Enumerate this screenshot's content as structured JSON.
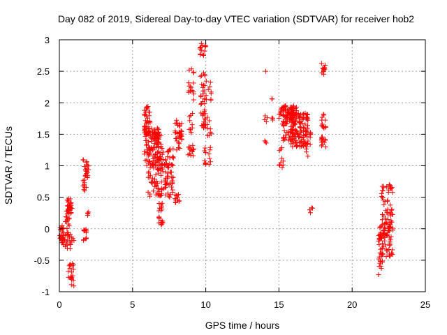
{
  "chart_data": {
    "type": "scatter",
    "title": "Day 082 of 2019, Sidereal Day-to-day VTEC variation (SDTVAR) for receiver hob2",
    "xlabel": "GPS time / hours",
    "ylabel": "SDTVAR / TECUs",
    "xlim": [
      0,
      25
    ],
    "ylim": [
      -1,
      3
    ],
    "xticks": [
      "0",
      "5",
      "10",
      "15",
      "20",
      "25"
    ],
    "yticks": [
      "-1",
      "-0.5",
      "0",
      "0.5",
      "1",
      "1.5",
      "2",
      "2.5",
      "3"
    ],
    "grid": true,
    "marker": "+",
    "color": "#ff0000",
    "series": [
      {
        "name": "SDTVAR",
        "clusters": [
          {
            "x0": 0.0,
            "x1": 0.3,
            "y0": -0.25,
            "y1": 0.05,
            "n": 25
          },
          {
            "x0": 0.2,
            "x1": 1.0,
            "y0": -0.32,
            "y1": -0.05,
            "n": 30
          },
          {
            "x0": 0.4,
            "x1": 0.8,
            "y0": 0.0,
            "y1": 0.35,
            "n": 20
          },
          {
            "x0": 0.5,
            "x1": 0.9,
            "y0": 0.25,
            "y1": 0.48,
            "n": 25
          },
          {
            "x0": 0.6,
            "x1": 1.0,
            "y0": -0.92,
            "y1": -0.55,
            "n": 20
          },
          {
            "x0": 1.6,
            "x1": 1.9,
            "y0": -0.2,
            "y1": 0.0,
            "n": 12
          },
          {
            "x0": 1.6,
            "x1": 2.0,
            "y0": 0.6,
            "y1": 1.1,
            "n": 30
          },
          {
            "x0": 1.8,
            "x1": 2.0,
            "y0": 0.2,
            "y1": 0.3,
            "n": 4
          },
          {
            "x0": 5.8,
            "x1": 6.2,
            "y0": 1.5,
            "y1": 1.95,
            "n": 40
          },
          {
            "x0": 5.8,
            "x1": 6.8,
            "y0": 1.0,
            "y1": 1.6,
            "n": 100
          },
          {
            "x0": 6.0,
            "x1": 6.8,
            "y0": 0.5,
            "y1": 1.1,
            "n": 40
          },
          {
            "x0": 6.5,
            "x1": 7.0,
            "y0": 1.3,
            "y1": 1.55,
            "n": 25
          },
          {
            "x0": 6.8,
            "x1": 7.1,
            "y0": 0.05,
            "y1": 0.45,
            "n": 20
          },
          {
            "x0": 6.8,
            "x1": 7.8,
            "y0": 0.5,
            "y1": 1.3,
            "n": 90
          },
          {
            "x0": 7.5,
            "x1": 7.7,
            "y0": 0.9,
            "y1": 0.9,
            "n": 2
          },
          {
            "x0": 7.9,
            "x1": 8.4,
            "y0": 1.25,
            "y1": 1.75,
            "n": 35
          },
          {
            "x0": 7.9,
            "x1": 8.3,
            "y0": 0.4,
            "y1": 0.55,
            "n": 12
          },
          {
            "x0": 8.8,
            "x1": 9.1,
            "y0": 1.5,
            "y1": 1.85,
            "n": 10
          },
          {
            "x0": 8.7,
            "x1": 9.2,
            "y0": 1.15,
            "y1": 1.35,
            "n": 14
          },
          {
            "x0": 8.8,
            "x1": 9.2,
            "y0": 2.0,
            "y1": 2.6,
            "n": 16
          },
          {
            "x0": 9.6,
            "x1": 10.0,
            "y0": 2.75,
            "y1": 2.95,
            "n": 14
          },
          {
            "x0": 9.6,
            "x1": 10.0,
            "y0": 1.6,
            "y1": 2.5,
            "n": 30
          },
          {
            "x0": 9.9,
            "x1": 10.4,
            "y0": 1.0,
            "y1": 2.35,
            "n": 40
          },
          {
            "x0": 14.0,
            "x1": 14.1,
            "y0": 2.5,
            "y1": 2.5,
            "n": 1
          },
          {
            "x0": 14.0,
            "x1": 14.2,
            "y0": 1.65,
            "y1": 1.8,
            "n": 4
          },
          {
            "x0": 14.0,
            "x1": 14.2,
            "y0": 1.35,
            "y1": 1.45,
            "n": 3
          },
          {
            "x0": 14.4,
            "x1": 14.6,
            "y0": 2.05,
            "y1": 2.08,
            "n": 2
          },
          {
            "x0": 14.5,
            "x1": 14.7,
            "y0": 1.72,
            "y1": 1.78,
            "n": 3
          },
          {
            "x0": 15.0,
            "x1": 15.3,
            "y0": 0.95,
            "y1": 1.3,
            "n": 10
          },
          {
            "x0": 15.0,
            "x1": 16.2,
            "y0": 1.75,
            "y1": 1.97,
            "n": 80
          },
          {
            "x0": 15.2,
            "x1": 16.0,
            "y0": 1.4,
            "y1": 1.75,
            "n": 40
          },
          {
            "x0": 15.8,
            "x1": 17.0,
            "y0": 1.3,
            "y1": 1.85,
            "n": 120
          },
          {
            "x0": 16.8,
            "x1": 17.2,
            "y0": 1.1,
            "y1": 1.6,
            "n": 16
          },
          {
            "x0": 17.0,
            "x1": 17.3,
            "y0": 0.25,
            "y1": 0.35,
            "n": 4
          },
          {
            "x0": 17.9,
            "x1": 18.2,
            "y0": 2.45,
            "y1": 2.65,
            "n": 12
          },
          {
            "x0": 17.9,
            "x1": 18.2,
            "y0": 1.55,
            "y1": 1.82,
            "n": 12
          },
          {
            "x0": 17.9,
            "x1": 18.2,
            "y0": 1.28,
            "y1": 1.48,
            "n": 14
          },
          {
            "x0": 21.8,
            "x1": 22.1,
            "y0": -0.78,
            "y1": -0.4,
            "n": 12
          },
          {
            "x0": 21.8,
            "x1": 22.8,
            "y0": -0.45,
            "y1": 0.1,
            "n": 80
          },
          {
            "x0": 22.0,
            "x1": 22.8,
            "y0": 0.0,
            "y1": 0.7,
            "n": 50
          }
        ]
      }
    ]
  }
}
